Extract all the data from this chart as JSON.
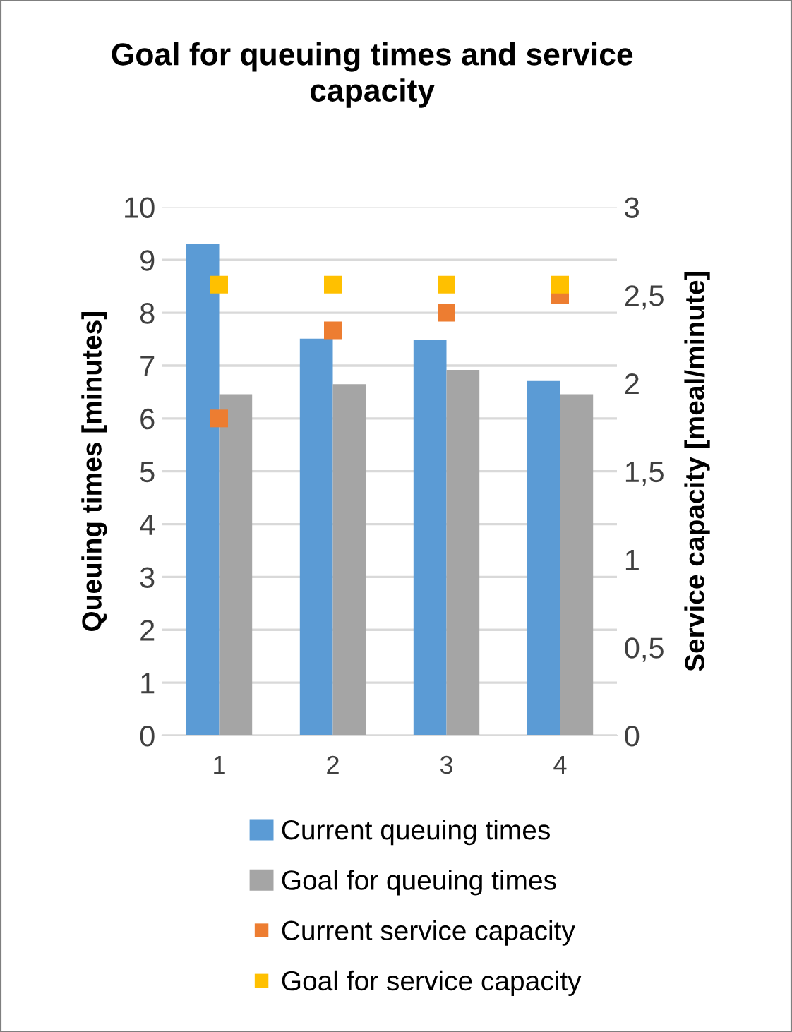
{
  "chart_data": {
    "type": "bar",
    "title": "Goal for queuing times and service capacity",
    "categories": [
      "1",
      "2",
      "3",
      "4"
    ],
    "series": [
      {
        "name": "Current queuing times",
        "color": "#5b9bd5",
        "values": [
          9.3,
          7.51,
          7.48,
          6.71
        ]
      },
      {
        "name": "Goal for queuing times",
        "color": "#a5a5a5",
        "values": [
          6.46,
          6.65,
          6.92,
          6.46
        ]
      },
      {
        "name": "Current service capacity",
        "type": "scatter",
        "axis": "y2",
        "marker": "square",
        "color": "#ed7d31",
        "values": [
          1.8,
          2.3,
          2.4,
          2.5
        ]
      },
      {
        "name": "Goal for service capacity",
        "type": "scatter",
        "axis": "y2",
        "marker": "square",
        "color": "#ffc000",
        "values": [
          2.56,
          2.56,
          2.56,
          2.56
        ]
      }
    ],
    "ylabel": "Queuing times [minutes]",
    "y2label": "Service capacity [meal/minute]",
    "ylim": [
      0,
      10
    ],
    "yticks": [
      0,
      1,
      2,
      3,
      4,
      5,
      6,
      7,
      8,
      9,
      10
    ],
    "y2lim": [
      0,
      3
    ],
    "y2ticks": [
      0,
      {
        "value": 0.5,
        "label": "0,5"
      },
      1,
      {
        "value": 1.5,
        "label": "1,5"
      },
      2,
      {
        "value": 2.5,
        "label": "2,5"
      },
      3
    ],
    "grid": "y",
    "legend": "bottom"
  }
}
